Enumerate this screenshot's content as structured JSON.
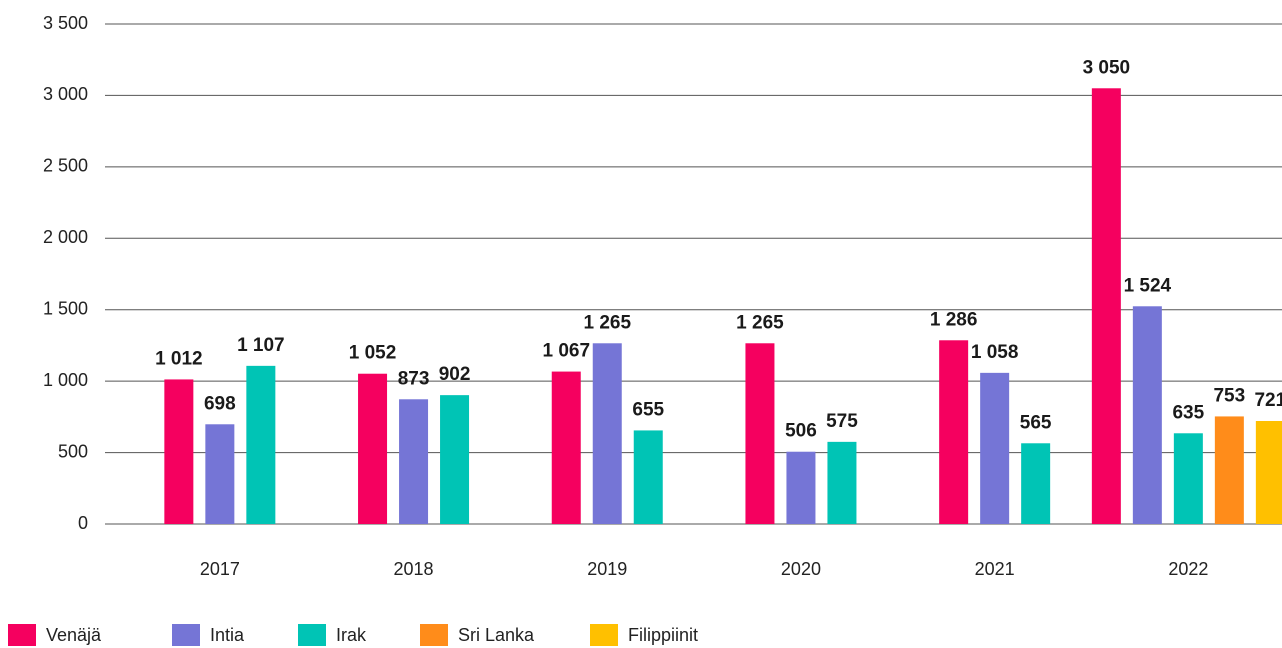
{
  "chart_data": {
    "type": "bar",
    "categories": [
      "2017",
      "2018",
      "2019",
      "2020",
      "2021",
      "2022"
    ],
    "series": [
      {
        "name": "Venäjä",
        "color": "#f5005f",
        "values": [
          1012,
          1052,
          1067,
          1265,
          1286,
          3050
        ],
        "value_labels": [
          "1 012",
          "1 052",
          "1 067",
          "1 265",
          "1 286",
          "3 050"
        ]
      },
      {
        "name": "Intia",
        "color": "#7575d6",
        "values": [
          698,
          873,
          1265,
          506,
          1058,
          1524
        ],
        "value_labels": [
          "698",
          "873",
          "1 265",
          "506",
          "1 058",
          "1 524"
        ]
      },
      {
        "name": "Irak",
        "color": "#00c4b5",
        "values": [
          1107,
          902,
          655,
          575,
          565,
          635
        ],
        "value_labels": [
          "1 107",
          "902",
          "655",
          "575",
          "565",
          "635"
        ]
      },
      {
        "name": "Sri Lanka",
        "color": "#ff8c1a",
        "values": [
          null,
          null,
          null,
          null,
          null,
          753
        ],
        "value_labels": [
          null,
          null,
          null,
          null,
          null,
          "753"
        ]
      },
      {
        "name": "Filippiinit",
        "color": "#ffc000",
        "values": [
          null,
          null,
          null,
          null,
          null,
          721
        ],
        "value_labels": [
          null,
          null,
          null,
          null,
          null,
          "721"
        ]
      }
    ],
    "ylim": [
      0,
      3500
    ],
    "yticks": [
      0,
      500,
      {
        "value": 1000,
        "label": "1 000"
      },
      {
        "value": 1500,
        "label": "1 500"
      },
      {
        "value": 2000,
        "label": "2 000"
      },
      {
        "value": 2500,
        "label": "2 500"
      },
      {
        "value": 3000,
        "label": "3 000"
      },
      {
        "value": 3500,
        "label": "3 500"
      }
    ],
    "grid": true,
    "legend": "bottom"
  }
}
